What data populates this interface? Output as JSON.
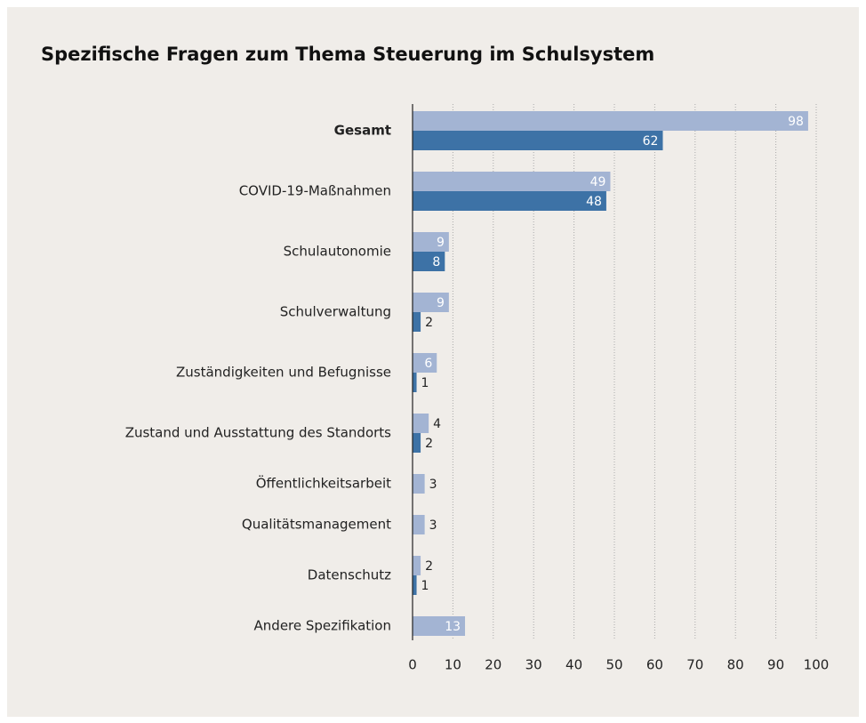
{
  "chart_data": {
    "type": "bar",
    "orientation": "horizontal",
    "title": "Spezifische Fragen zum Thema Steuerung im Schulsystem",
    "categories": [
      "Gesamt",
      "COVID-19-Maßnahmen",
      "Schulautonomie",
      "Schulverwaltung",
      "Zuständigkeiten und Befugnisse",
      "Zustand und Ausstattung des Standorts",
      "Öffentlichkeitsarbeit",
      "Qualitätsmanagement",
      "Datenschutz",
      "Andere Spezifikation"
    ],
    "series": [
      {
        "color": "#a3b4d3",
        "values": [
          98,
          49,
          9,
          9,
          6,
          4,
          3,
          3,
          2,
          13
        ]
      },
      {
        "color": "#3d72a6",
        "values": [
          62,
          48,
          8,
          2,
          1,
          2,
          null,
          null,
          1,
          null
        ]
      }
    ],
    "xlim": [
      0,
      100
    ],
    "xticks": [
      0,
      10,
      20,
      30,
      40,
      50,
      60,
      70,
      80,
      90,
      100
    ],
    "grid": true
  }
}
